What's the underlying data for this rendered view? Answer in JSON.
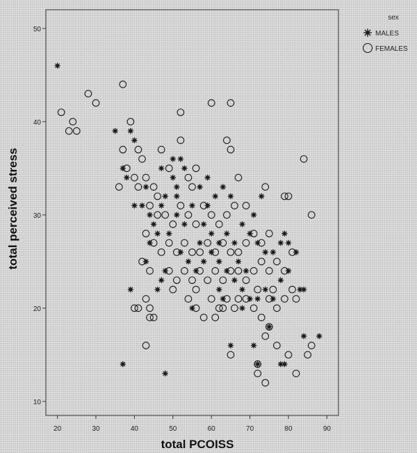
{
  "chart_data": {
    "type": "scatter",
    "title": "",
    "xlabel": "total PCOISS",
    "ylabel": "total perceived stress",
    "xlim": [
      17,
      93
    ],
    "ylim": [
      8.5,
      52
    ],
    "xticks": [
      20,
      30,
      40,
      50,
      60,
      70,
      80,
      90
    ],
    "yticks": [
      10,
      20,
      30,
      40,
      50
    ],
    "grid": false,
    "legend": {
      "title": "sex",
      "placement": "right-top"
    },
    "colors": {
      "marker": "#1a1a1a",
      "axis": "#333333",
      "background": "#d8d8d8"
    },
    "series": [
      {
        "name": "MALES",
        "marker": "star",
        "points": [
          [
            20,
            46
          ],
          [
            35,
            39
          ],
          [
            39,
            39
          ],
          [
            40,
            38
          ],
          [
            37,
            35
          ],
          [
            38,
            34
          ],
          [
            43,
            33
          ],
          [
            42,
            31
          ],
          [
            40,
            31
          ],
          [
            47,
            35
          ],
          [
            50,
            36
          ],
          [
            52,
            36
          ],
          [
            53,
            35
          ],
          [
            50,
            34
          ],
          [
            51,
            33
          ],
          [
            48,
            32
          ],
          [
            47,
            31
          ],
          [
            44,
            30
          ],
          [
            45,
            29
          ],
          [
            46,
            28
          ],
          [
            44,
            27
          ],
          [
            49,
            28
          ],
          [
            51,
            30
          ],
          [
            55,
            31
          ],
          [
            57,
            33
          ],
          [
            59,
            34
          ],
          [
            61,
            32
          ],
          [
            63,
            33
          ],
          [
            65,
            32
          ],
          [
            58,
            29
          ],
          [
            60,
            28
          ],
          [
            62,
            27
          ],
          [
            64,
            28
          ],
          [
            66,
            27
          ],
          [
            68,
            29
          ],
          [
            70,
            28
          ],
          [
            72,
            27
          ],
          [
            74,
            26
          ],
          [
            76,
            26
          ],
          [
            78,
            27
          ],
          [
            80,
            27
          ],
          [
            82,
            26
          ],
          [
            71,
            30
          ],
          [
            73,
            32
          ],
          [
            52,
            26
          ],
          [
            54,
            25
          ],
          [
            56,
            24
          ],
          [
            58,
            25
          ],
          [
            60,
            26
          ],
          [
            62,
            25
          ],
          [
            64,
            24
          ],
          [
            66,
            23
          ],
          [
            68,
            22
          ],
          [
            70,
            21
          ],
          [
            72,
            21
          ],
          [
            74,
            22
          ],
          [
            76,
            21
          ],
          [
            78,
            23
          ],
          [
            80,
            24
          ],
          [
            48,
            24
          ],
          [
            47,
            23
          ],
          [
            43,
            25
          ],
          [
            39,
            22
          ],
          [
            46,
            22
          ],
          [
            55,
            20
          ],
          [
            62,
            22
          ],
          [
            68,
            20
          ],
          [
            75,
            18
          ],
          [
            78,
            14
          ],
          [
            79,
            14
          ],
          [
            84,
            17
          ],
          [
            88,
            17
          ],
          [
            83,
            22
          ],
          [
            84,
            22
          ],
          [
            79,
            28
          ],
          [
            72,
            14
          ],
          [
            71,
            16
          ],
          [
            65,
            16
          ],
          [
            37,
            14
          ],
          [
            48,
            13
          ],
          [
            63,
            21
          ],
          [
            67,
            25
          ],
          [
            69,
            24
          ],
          [
            57,
            27
          ],
          [
            53,
            29
          ],
          [
            51,
            32
          ],
          [
            59,
            31
          ]
        ]
      },
      {
        "name": "FEMALES",
        "marker": "circle",
        "points": [
          [
            21,
            41
          ],
          [
            23,
            39
          ],
          [
            24,
            40
          ],
          [
            25,
            39
          ],
          [
            28,
            43
          ],
          [
            30,
            42
          ],
          [
            37,
            44
          ],
          [
            39,
            40
          ],
          [
            38,
            35
          ],
          [
            40,
            34
          ],
          [
            37,
            37
          ],
          [
            41,
            37
          ],
          [
            42,
            36
          ],
          [
            41,
            33
          ],
          [
            43,
            34
          ],
          [
            36,
            33
          ],
          [
            45,
            33
          ],
          [
            46,
            32
          ],
          [
            47,
            37
          ],
          [
            49,
            35
          ],
          [
            52,
            38
          ],
          [
            54,
            34
          ],
          [
            55,
            33
          ],
          [
            56,
            35
          ],
          [
            52,
            41
          ],
          [
            60,
            42
          ],
          [
            65,
            42
          ],
          [
            64,
            38
          ],
          [
            65,
            37
          ],
          [
            67,
            34
          ],
          [
            66,
            31
          ],
          [
            69,
            31
          ],
          [
            74,
            33
          ],
          [
            79,
            32
          ],
          [
            80,
            32
          ],
          [
            84,
            36
          ],
          [
            86,
            30
          ],
          [
            44,
            31
          ],
          [
            46,
            30
          ],
          [
            48,
            30
          ],
          [
            50,
            29
          ],
          [
            52,
            31
          ],
          [
            54,
            30
          ],
          [
            56,
            29
          ],
          [
            58,
            31
          ],
          [
            60,
            30
          ],
          [
            62,
            29
          ],
          [
            64,
            30
          ],
          [
            43,
            28
          ],
          [
            45,
            27
          ],
          [
            47,
            26
          ],
          [
            49,
            27
          ],
          [
            51,
            26
          ],
          [
            53,
            27
          ],
          [
            55,
            26
          ],
          [
            57,
            26
          ],
          [
            59,
            27
          ],
          [
            61,
            26
          ],
          [
            63,
            27
          ],
          [
            65,
            26
          ],
          [
            67,
            26
          ],
          [
            69,
            27
          ],
          [
            71,
            28
          ],
          [
            73,
            27
          ],
          [
            75,
            28
          ],
          [
            42,
            25
          ],
          [
            44,
            24
          ],
          [
            49,
            24
          ],
          [
            51,
            23
          ],
          [
            53,
            24
          ],
          [
            55,
            23
          ],
          [
            57,
            24
          ],
          [
            59,
            23
          ],
          [
            61,
            24
          ],
          [
            63,
            23
          ],
          [
            65,
            24
          ],
          [
            67,
            24
          ],
          [
            69,
            23
          ],
          [
            71,
            24
          ],
          [
            73,
            25
          ],
          [
            75,
            24
          ],
          [
            77,
            25
          ],
          [
            79,
            24
          ],
          [
            81,
            26
          ],
          [
            50,
            22
          ],
          [
            54,
            21
          ],
          [
            56,
            22
          ],
          [
            60,
            21
          ],
          [
            64,
            21
          ],
          [
            66,
            20
          ],
          [
            69,
            21
          ],
          [
            72,
            22
          ],
          [
            75,
            21
          ],
          [
            77,
            20
          ],
          [
            79,
            21
          ],
          [
            81,
            22
          ],
          [
            82,
            21
          ],
          [
            43,
            21
          ],
          [
            44,
            19
          ],
          [
            40,
            20
          ],
          [
            41,
            20
          ],
          [
            45,
            19
          ],
          [
            44,
            20
          ],
          [
            58,
            19
          ],
          [
            61,
            19
          ],
          [
            63,
            20
          ],
          [
            73,
            19
          ],
          [
            74,
            17
          ],
          [
            75,
            18
          ],
          [
            77,
            16
          ],
          [
            80,
            15
          ],
          [
            82,
            13
          ],
          [
            85,
            15
          ],
          [
            86,
            16
          ],
          [
            72,
            13
          ],
          [
            72,
            14
          ],
          [
            74,
            12
          ],
          [
            65,
            15
          ],
          [
            43,
            16
          ],
          [
            56,
            20
          ],
          [
            67,
            21
          ],
          [
            71,
            20
          ],
          [
            76,
            22
          ],
          [
            62,
            20
          ]
        ]
      }
    ]
  }
}
